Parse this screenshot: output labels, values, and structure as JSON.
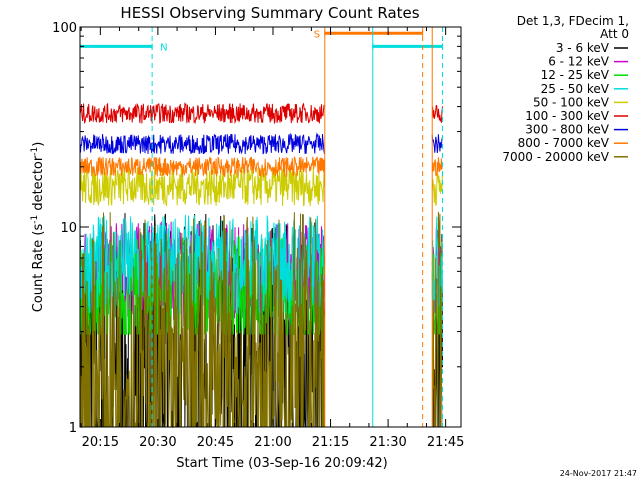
{
  "chart_data": {
    "type": "line",
    "title": "HESSI Observing Summary Count Rates",
    "xlabel": "Start Time (03-Sep-16 20:09:42)",
    "ylabel_parts": [
      "Count Rate (s",
      "-1",
      " detector",
      "-1",
      ")"
    ],
    "yscale": "log",
    "ylim": [
      1,
      100
    ],
    "xlim": [
      "20:09:42",
      "21:49:00"
    ],
    "y_ticks": [
      "1",
      "10",
      "100"
    ],
    "x_ticks": [
      "20:15",
      "20:30",
      "20:45",
      "21:00",
      "21:15",
      "21:30",
      "21:45"
    ],
    "legend_header": [
      "Det 1,3, FDecim 1,",
      "Att 0"
    ],
    "legend_position": "right",
    "series": [
      {
        "name": "3 - 6 keV",
        "color": "#000000",
        "level": 1.5,
        "noise": 0.9,
        "floor": 1.0,
        "segments": [
          [
            "20:09:42",
            "21:13:30"
          ],
          [
            "21:41:30",
            "21:44:10"
          ]
        ]
      },
      {
        "name": "6 - 12 keV",
        "color": "#cc00cc",
        "level": 6.0,
        "noise": 0.25,
        "floor": 2.9,
        "segments": [
          [
            "20:09:42",
            "21:13:30"
          ],
          [
            "21:41:30",
            "21:44:10"
          ]
        ]
      },
      {
        "name": "12 - 25 keV",
        "color": "#00dd00",
        "level": 4.5,
        "noise": 0.3,
        "floor": 2.9,
        "segments": [
          [
            "20:09:42",
            "21:13:30"
          ],
          [
            "21:41:30",
            "21:44:10"
          ]
        ]
      },
      {
        "name": "25 - 50 keV",
        "color": "#00dddd",
        "level": 6.5,
        "noise": 0.25,
        "floor": 2.9,
        "segments": [
          [
            "20:09:42",
            "21:13:30"
          ],
          [
            "21:41:30",
            "21:44:10"
          ]
        ]
      },
      {
        "name": "50 - 100 keV",
        "color": "#cccc00",
        "level": 16.0,
        "noise": 0.1,
        "floor": 10.0,
        "segments": [
          [
            "20:09:42",
            "21:13:30"
          ],
          [
            "21:41:30",
            "21:44:10"
          ]
        ]
      },
      {
        "name": "100 - 300 keV",
        "color": "#dd0000",
        "level": 37.0,
        "noise": 0.05,
        "floor": 28.0,
        "segments": [
          [
            "20:09:42",
            "21:13:30"
          ],
          [
            "21:41:30",
            "21:44:10"
          ]
        ]
      },
      {
        "name": "300 - 800 keV",
        "color": "#0000dd",
        "level": 26.0,
        "noise": 0.05,
        "floor": 20.0,
        "segments": [
          [
            "20:09:42",
            "21:13:30"
          ],
          [
            "21:41:30",
            "21:44:10"
          ]
        ]
      },
      {
        "name": "800 - 7000 keV",
        "color": "#ff7700",
        "level": 20.0,
        "noise": 0.05,
        "floor": 15.0,
        "segments": [
          [
            "20:09:42",
            "21:13:30"
          ],
          [
            "21:41:30",
            "21:44:10"
          ]
        ]
      },
      {
        "name": "7000 - 20000 keV",
        "color": "#807000",
        "level": 1.5,
        "noise": 0.9,
        "floor": 1.0,
        "segments": [
          [
            "20:09:42",
            "21:13:30"
          ],
          [
            "21:41:30",
            "21:44:10"
          ]
        ]
      }
    ],
    "flags": [
      {
        "label": "N",
        "color": "#00dddd",
        "start": "20:09:42",
        "end": "20:28:30",
        "value": 80
      },
      {
        "label": "",
        "color": "#00dddd",
        "start": "21:26:00",
        "end": "21:44:10",
        "value": 80
      },
      {
        "label": "S",
        "color": "#ff7700",
        "start": "21:13:30",
        "end": "21:39:00",
        "value": 93
      }
    ],
    "vertical_markers": [
      {
        "time": "20:28:30",
        "color": "#00dddd",
        "style": "dashed"
      },
      {
        "time": "21:13:30",
        "color": "#ff7700",
        "style": "solid"
      },
      {
        "time": "21:26:00",
        "color": "#00dddd",
        "style": "solid"
      },
      {
        "time": "21:39:00",
        "color": "#ff7700",
        "style": "dashed"
      },
      {
        "time": "21:41:30",
        "color": "#ff7700",
        "style": "solid"
      },
      {
        "time": "21:44:10",
        "color": "#00dddd",
        "style": "dashed"
      }
    ]
  },
  "footer": {
    "date": "24-Nov-2017 21:47"
  }
}
